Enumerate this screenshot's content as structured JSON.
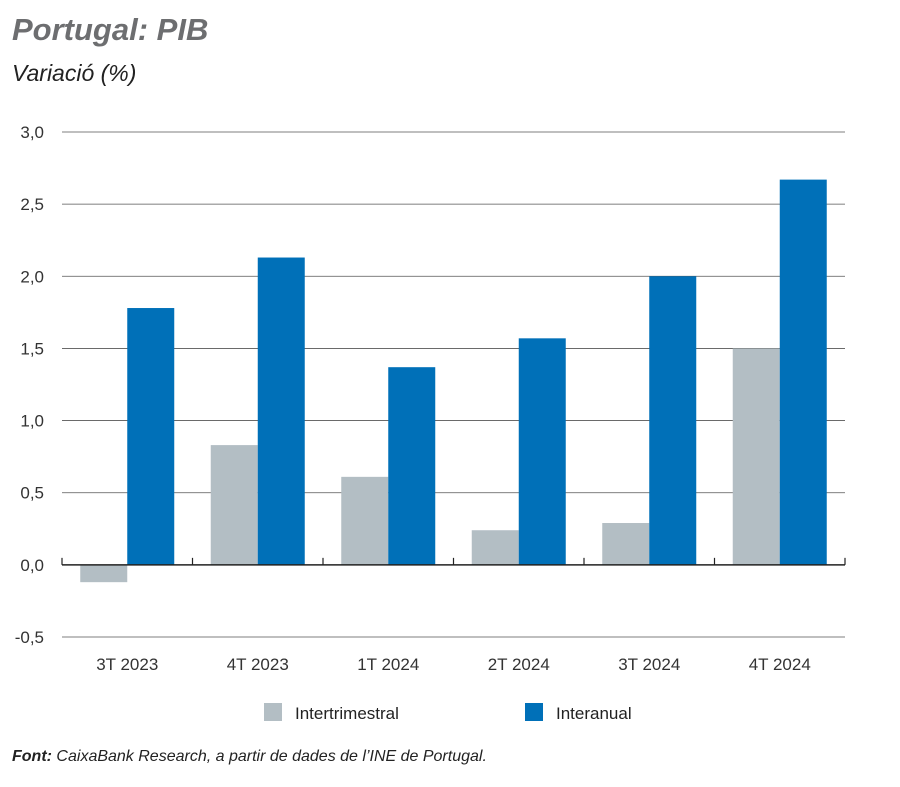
{
  "chart_data": {
    "type": "bar",
    "title": "Portugal: PIB",
    "subtitle": "Variació (%)",
    "categories": [
      "3T 2023",
      "4T 2023",
      "1T 2024",
      "2T 2024",
      "3T 2024",
      "4T 2024"
    ],
    "series": [
      {
        "name": "Intertrimestral",
        "color": "#b3bec4",
        "values": [
          -0.12,
          0.83,
          0.61,
          0.24,
          0.29,
          1.5
        ]
      },
      {
        "name": "Interanual",
        "color": "#0070b8",
        "values": [
          1.78,
          2.13,
          1.37,
          1.57,
          2.0,
          2.67
        ]
      }
    ],
    "ylim": [
      -0.5,
      3.0
    ],
    "yticks": [
      "-0,5",
      "0,0",
      "0,5",
      "1,0",
      "1,5",
      "2,0",
      "2,5",
      "3,0"
    ],
    "ytick_values": [
      -0.5,
      0,
      0.5,
      1,
      1.5,
      2,
      2.5,
      3
    ],
    "grid": true,
    "legend_placement": "bottom"
  },
  "source": {
    "label": "Font:",
    "text": " CaixaBank Research, a partir de dades de l’INE de Portugal."
  }
}
